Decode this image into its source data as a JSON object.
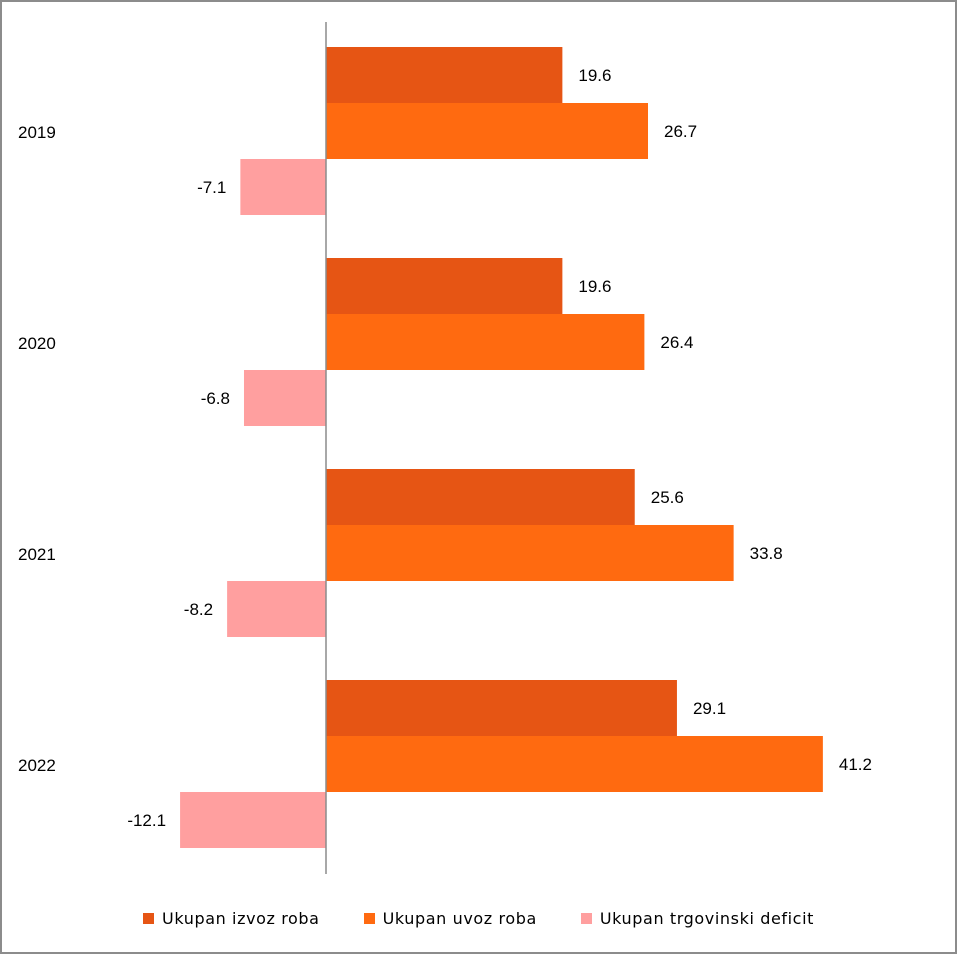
{
  "chart_data": {
    "type": "bar",
    "orientation": "horizontal",
    "categories": [
      "2019",
      "2020",
      "2021",
      "2022"
    ],
    "series": [
      {
        "name": "Ukupan izvoz roba",
        "color": "#e65514",
        "values": [
          19.6,
          19.6,
          25.6,
          29.1
        ],
        "labels": [
          "19.6",
          "19.6",
          "25.6",
          "29.1"
        ]
      },
      {
        "name": "Ukupan uvoz roba",
        "color": "#ff6a10",
        "values": [
          26.7,
          26.4,
          33.8,
          41.2
        ],
        "labels": [
          "26.7",
          "26.4",
          "33.8",
          "41.2"
        ]
      },
      {
        "name": "Ukupan trgovinski deficit",
        "color": "#ff9f9f",
        "values": [
          -7.1,
          -6.8,
          -8.2,
          -12.1
        ],
        "labels": [
          "-7.1",
          "-6.8",
          "-8.2",
          "-12.1"
        ]
      }
    ],
    "xlim": [
      -12.1,
      41.2
    ],
    "grid": false,
    "legend_position": "bottom"
  }
}
